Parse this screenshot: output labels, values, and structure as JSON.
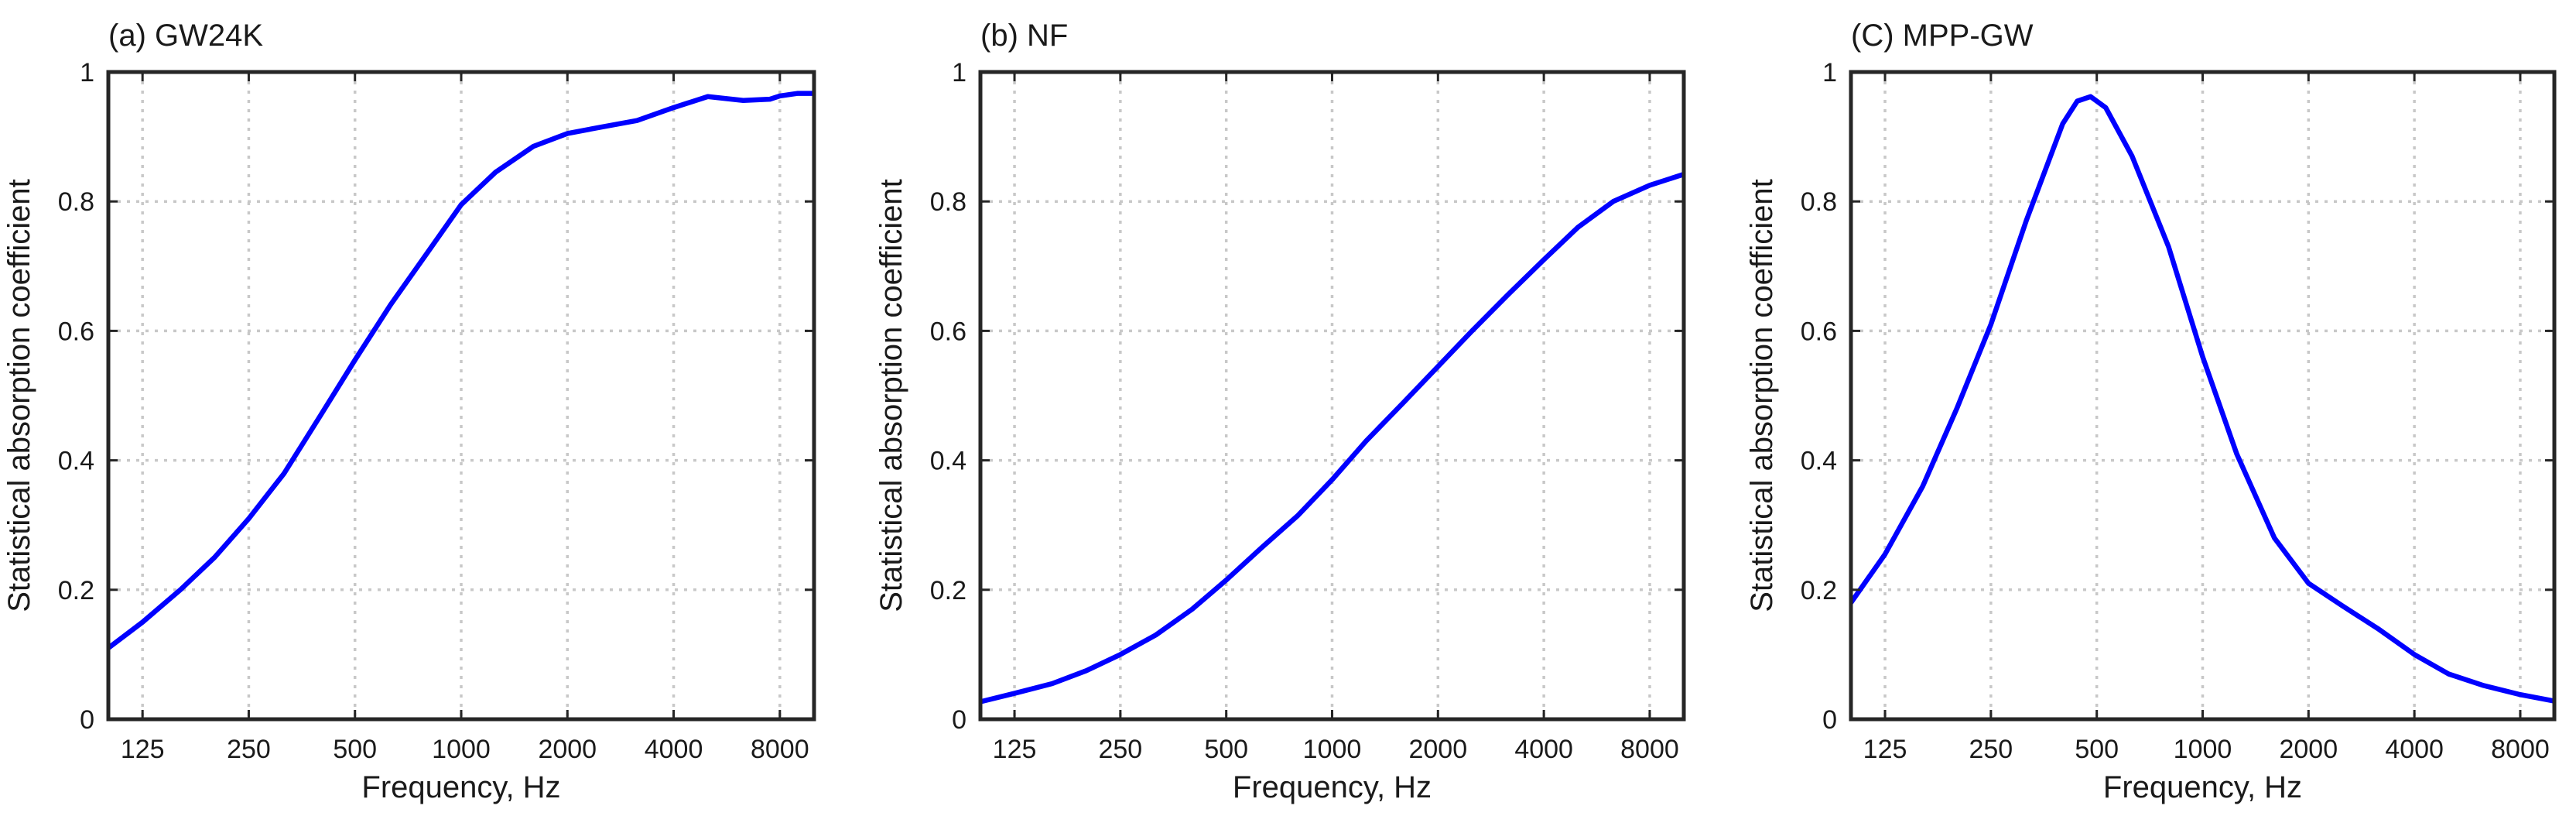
{
  "figure": {
    "panels_count": 3
  },
  "chart_data": [
    {
      "type": "line",
      "panel_title": "(a) GW24K",
      "xlabel": "Frequency, Hz",
      "ylabel": "Statistical absorption coefficient",
      "xscale": "log",
      "xlim": [
        100,
        10000
      ],
      "ylim": [
        0,
        1
      ],
      "xticks": [
        125,
        250,
        500,
        1000,
        2000,
        4000,
        8000
      ],
      "xtick_labels": [
        "125",
        "250",
        "500",
        "1000",
        "2000",
        "4000",
        "8000"
      ],
      "yticks": [
        0,
        0.2,
        0.4,
        0.6,
        0.8,
        1
      ],
      "ytick_labels": [
        "0",
        "0.2",
        "0.4",
        "0.6",
        "0.8",
        "1"
      ],
      "grid": true,
      "series": [
        {
          "name": "GW24K",
          "color": "#0000ff",
          "x": [
            100,
            125,
            160,
            200,
            250,
            315,
            400,
            500,
            630,
            800,
            1000,
            1250,
            1600,
            2000,
            2500,
            3150,
            4000,
            5000,
            6300,
            7500,
            8000,
            9000,
            10000
          ],
          "y": [
            0.11,
            0.15,
            0.2,
            0.25,
            0.31,
            0.38,
            0.47,
            0.555,
            0.64,
            0.72,
            0.795,
            0.845,
            0.885,
            0.905,
            0.915,
            0.925,
            0.945,
            0.962,
            0.956,
            0.958,
            0.963,
            0.967,
            0.967
          ]
        }
      ]
    },
    {
      "type": "line",
      "panel_title": "(b) NF",
      "xlabel": "Frequency, Hz",
      "ylabel": "Statistical absorption coefficient",
      "xscale": "log",
      "xlim": [
        100,
        10000
      ],
      "ylim": [
        0,
        1
      ],
      "xticks": [
        125,
        250,
        500,
        1000,
        2000,
        4000,
        8000
      ],
      "xtick_labels": [
        "125",
        "250",
        "500",
        "1000",
        "2000",
        "4000",
        "8000"
      ],
      "yticks": [
        0,
        0.2,
        0.4,
        0.6,
        0.8,
        1
      ],
      "ytick_labels": [
        "0",
        "0.2",
        "0.4",
        "0.6",
        "0.8",
        "1"
      ],
      "grid": true,
      "series": [
        {
          "name": "NF",
          "color": "#0000ff",
          "x": [
            100,
            125,
            160,
            200,
            250,
            315,
            400,
            500,
            630,
            800,
            1000,
            1250,
            1600,
            2000,
            2500,
            3150,
            4000,
            5000,
            6300,
            8000,
            10000
          ],
          "y": [
            0.027,
            0.04,
            0.055,
            0.075,
            0.1,
            0.13,
            0.17,
            0.215,
            0.265,
            0.315,
            0.37,
            0.43,
            0.49,
            0.545,
            0.6,
            0.655,
            0.71,
            0.76,
            0.8,
            0.825,
            0.842
          ]
        }
      ]
    },
    {
      "type": "line",
      "panel_title": "(C) MPP-GW",
      "xlabel": "Frequency, Hz",
      "ylabel": "Statistical absorption coefficient",
      "xscale": "log",
      "xlim": [
        100,
        10000
      ],
      "ylim": [
        0,
        1
      ],
      "xticks": [
        125,
        250,
        500,
        1000,
        2000,
        4000,
        8000
      ],
      "xtick_labels": [
        "125",
        "250",
        "500",
        "1000",
        "2000",
        "4000",
        "8000"
      ],
      "yticks": [
        0,
        0.2,
        0.4,
        0.6,
        0.8,
        1
      ],
      "ytick_labels": [
        "0",
        "0.2",
        "0.4",
        "0.6",
        "0.8",
        "1"
      ],
      "grid": true,
      "series": [
        {
          "name": "MPP-GW",
          "color": "#0000ff",
          "x": [
            100,
            125,
            160,
            200,
            250,
            315,
            400,
            440,
            480,
            530,
            630,
            800,
            1000,
            1250,
            1600,
            2000,
            2500,
            3150,
            4000,
            5000,
            6300,
            8000,
            10000
          ],
          "y": [
            0.18,
            0.255,
            0.36,
            0.48,
            0.61,
            0.77,
            0.92,
            0.955,
            0.962,
            0.945,
            0.87,
            0.73,
            0.56,
            0.41,
            0.28,
            0.21,
            0.175,
            0.14,
            0.1,
            0.07,
            0.052,
            0.038,
            0.028
          ]
        }
      ]
    }
  ]
}
